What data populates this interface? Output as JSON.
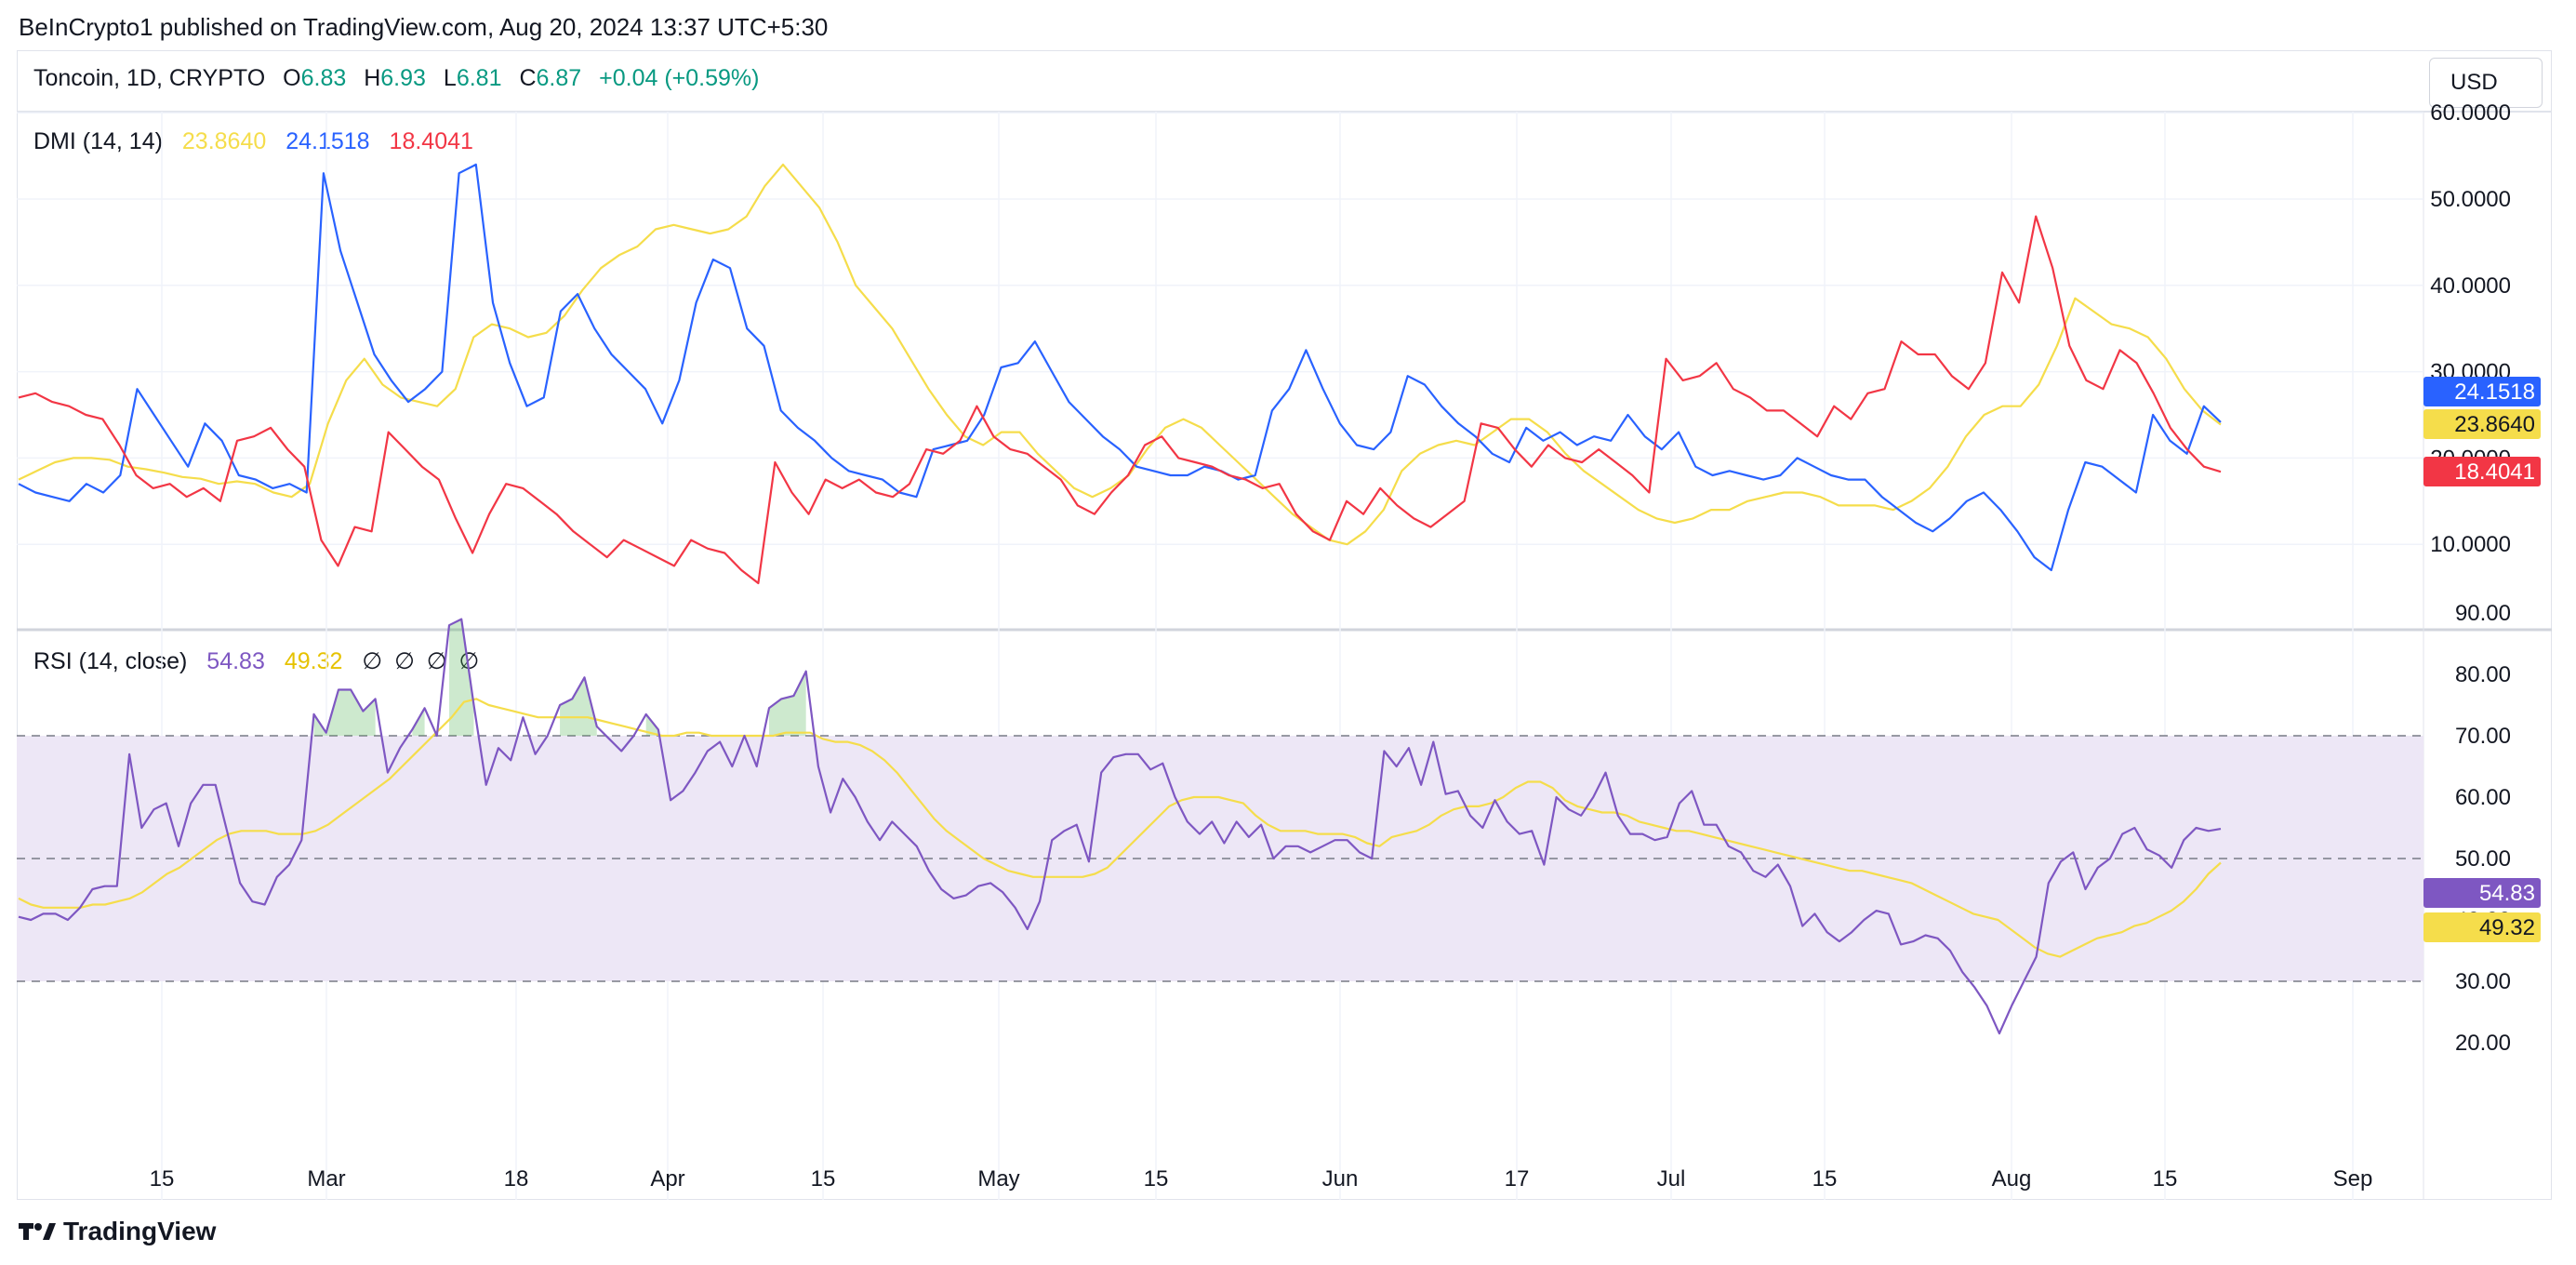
{
  "publisher_line": "BeInCrypto1 published on TradingView.com, Aug 20, 2024 13:37 UTC+5:30",
  "header": {
    "symbol": "Toncoin, 1D, CRYPTO",
    "o_label": "O",
    "o_value": "6.83",
    "h_label": "H",
    "h_value": "6.93",
    "l_label": "L",
    "l_value": "6.81",
    "c_label": "C",
    "c_value": "6.87",
    "change": "+0.04 (+0.59%)",
    "currency": "USD"
  },
  "footer": {
    "brand": "TradingView"
  },
  "colors": {
    "adx": "#f5dd4b",
    "plus_di": "#2962ff",
    "minus_di": "#f23645",
    "rsi": "#7e57c2",
    "rsi_ma": "#f5dd4b",
    "band": "#ede7f6"
  },
  "chart_data": [
    {
      "type": "line",
      "title": "DMI (14, 14)",
      "legend_values": [
        "23.8640",
        "24.1518",
        "18.4041"
      ],
      "y_ticks": [
        "10.0000",
        "20.0000",
        "30.0000",
        "40.0000",
        "50.0000",
        "60.0000"
      ],
      "ylim": [
        0,
        60
      ],
      "last_labels": [
        "24.1518",
        "23.8640",
        "18.4041"
      ],
      "series": [
        {
          "values": [
            17.5,
            18.5,
            19.5,
            20.0,
            20.0,
            19.8,
            19.0,
            18.7,
            18.3,
            17.8,
            17.6,
            17.0,
            17.3,
            17.0,
            16.0,
            15.5,
            17.0,
            24.0,
            29.0,
            31.5,
            28.5,
            27.0,
            26.5,
            26.0,
            28.0,
            34.0,
            35.5,
            35.0,
            34.0,
            34.5,
            36.5,
            39.5,
            42.0,
            43.5,
            44.5,
            46.5,
            47.0,
            46.5,
            46.0,
            46.5,
            48.0,
            51.5,
            54.0,
            51.5,
            49.0,
            45.0,
            40.0,
            37.5,
            35.0,
            31.5,
            28.0,
            25.0,
            22.5,
            21.5,
            23.0,
            23.0,
            20.5,
            18.5,
            16.5,
            15.5,
            16.5,
            18.0,
            21.0,
            23.5,
            24.5,
            23.5,
            21.5,
            19.5,
            17.5,
            15.5,
            13.5,
            12.0,
            10.5,
            10.0,
            11.5,
            14.0,
            18.5,
            20.5,
            21.5,
            22.0,
            21.5,
            23.0,
            24.5,
            24.5,
            23.0,
            20.5,
            18.5,
            17.0,
            15.5,
            14.0,
            13.0,
            12.5,
            13.0,
            14.0,
            14.0,
            15.0,
            15.5,
            16.0,
            16.0,
            15.5,
            14.5,
            14.5,
            14.5,
            14.0,
            15.0,
            16.5,
            19.0,
            22.5,
            25.0,
            26.0,
            26.0,
            28.5,
            33.0,
            38.5,
            37.0,
            35.5,
            35.0,
            34.0,
            31.5,
            28.0,
            25.5,
            23.864
          ]
        },
        {
          "values": [
            17.0,
            16.0,
            15.5,
            15.0,
            17.0,
            16.0,
            18.0,
            28.0,
            25.0,
            22.0,
            19.0,
            24.0,
            22.0,
            18.0,
            17.5,
            16.5,
            17.0,
            16.0,
            53.0,
            44.0,
            38.0,
            32.0,
            29.0,
            26.5,
            28.0,
            30.0,
            53.0,
            54.0,
            38.0,
            31.0,
            26.0,
            27.0,
            37.0,
            39.0,
            35.0,
            32.0,
            30.0,
            28.0,
            24.0,
            29.0,
            38.0,
            43.0,
            42.0,
            35.0,
            33.0,
            25.5,
            23.5,
            22.0,
            20.0,
            18.5,
            18.0,
            17.5,
            16.0,
            15.5,
            21.0,
            21.5,
            22.0,
            25.0,
            30.5,
            31.0,
            33.5,
            30.0,
            26.5,
            24.5,
            22.5,
            21.0,
            19.0,
            18.5,
            18.0,
            18.0,
            19.0,
            18.5,
            17.5,
            18.0,
            25.5,
            28.0,
            32.5,
            28.0,
            24.0,
            21.5,
            21.0,
            23.0,
            29.5,
            28.5,
            26.0,
            24.0,
            22.5,
            20.5,
            19.5,
            23.5,
            22.0,
            23.0,
            21.5,
            22.5,
            22.0,
            25.0,
            22.5,
            21.0,
            23.0,
            19.0,
            18.0,
            18.5,
            18.0,
            17.5,
            18.0,
            20.0,
            19.0,
            18.0,
            17.5,
            17.5,
            15.5,
            14.0,
            12.5,
            11.5,
            13.0,
            15.0,
            16.0,
            14.0,
            11.5,
            8.5,
            7.0,
            14.0,
            19.5,
            19.0,
            17.5,
            16.0,
            25.0,
            22.0,
            20.5,
            26.0,
            24.1518
          ]
        },
        {
          "values": [
            27.0,
            27.5,
            26.5,
            26.0,
            25.0,
            24.5,
            21.5,
            18.0,
            16.5,
            17.0,
            15.5,
            16.5,
            15.0,
            22.0,
            22.5,
            23.5,
            21.0,
            19.0,
            10.5,
            7.5,
            12.0,
            11.5,
            23.0,
            21.0,
            19.0,
            17.5,
            13.0,
            9.0,
            13.5,
            17.0,
            16.5,
            15.0,
            13.5,
            11.5,
            10.0,
            8.5,
            10.5,
            9.5,
            8.5,
            7.5,
            10.5,
            9.5,
            9.0,
            7.0,
            5.5,
            19.5,
            16.0,
            13.5,
            17.5,
            16.5,
            17.5,
            16.0,
            15.5,
            17.0,
            21.0,
            20.5,
            22.0,
            26.0,
            22.5,
            21.0,
            20.5,
            19.0,
            17.5,
            14.5,
            13.5,
            16.0,
            18.0,
            21.5,
            22.5,
            20.0,
            19.5,
            19.0,
            18.0,
            17.5,
            16.5,
            17.0,
            13.5,
            11.5,
            10.5,
            15.0,
            13.5,
            16.5,
            14.5,
            13.0,
            12.0,
            13.5,
            15.0,
            24.0,
            23.5,
            21.0,
            19.0,
            21.5,
            20.0,
            19.5,
            21.0,
            19.5,
            18.0,
            16.0,
            31.5,
            29.0,
            29.5,
            31.0,
            28.0,
            27.0,
            25.5,
            25.5,
            24.0,
            22.5,
            26.0,
            24.5,
            27.5,
            28.0,
            33.5,
            32.0,
            32.0,
            29.5,
            28.0,
            31.0,
            41.5,
            38.0,
            48.0,
            42.0,
            33.0,
            29.0,
            28.0,
            32.5,
            31.0,
            27.5,
            23.5,
            21.0,
            19.0,
            18.4041
          ]
        }
      ]
    },
    {
      "type": "line",
      "title": "RSI (14, close)",
      "legend_values": [
        "54.83",
        "49.32"
      ],
      "legend_extra": [
        "∅",
        "∅",
        "∅",
        "∅"
      ],
      "y_ticks": [
        "20.00",
        "30.00",
        "40.00",
        "50.00",
        "60.00",
        "70.00",
        "80.00",
        "90.00"
      ],
      "ylim": [
        15,
        93
      ],
      "bands": [
        30,
        50,
        70
      ],
      "last_labels": [
        "54.83",
        "49.32"
      ],
      "x_ticks": [
        "15",
        "Mar",
        "18",
        "Apr",
        "15",
        "May",
        "15",
        "Jun",
        "17",
        "Jul",
        "15",
        "Aug",
        "15",
        "Sep"
      ],
      "series": [
        {
          "values": [
            40.5,
            40.0,
            41.0,
            41.0,
            40.0,
            42.0,
            45.0,
            45.5,
            45.5,
            67.0,
            55.0,
            58.0,
            59.0,
            52.0,
            59.0,
            62.0,
            62.0,
            54.0,
            46.0,
            43.0,
            42.5,
            47.0,
            49.0,
            53.0,
            73.5,
            70.5,
            77.5,
            77.5,
            74.0,
            76.0,
            64.0,
            68.0,
            71.0,
            74.5,
            70.0,
            88.0,
            89.0,
            75.0,
            62.0,
            68.0,
            66.0,
            73.0,
            67.0,
            70.0,
            75.0,
            76.0,
            79.5,
            71.5,
            69.5,
            67.5,
            70.0,
            73.5,
            71.0,
            59.5,
            61.0,
            64.0,
            67.5,
            69.0,
            65.0,
            70.0,
            65.0,
            74.5,
            76.0,
            76.5,
            80.5,
            65.0,
            57.5,
            63.0,
            60.0,
            56.0,
            53.0,
            56.0,
            54.0,
            52.0,
            48.0,
            45.0,
            43.5,
            44.0,
            45.5,
            46.0,
            44.5,
            42.0,
            38.5,
            43.0,
            53.0,
            54.5,
            55.5,
            49.5,
            64.0,
            66.5,
            67.0,
            67.0,
            64.5,
            65.5,
            60.0,
            56.0,
            54.0,
            56.0,
            52.5,
            56.0,
            53.5,
            55.5,
            50.0,
            52.0,
            52.0,
            51.0,
            52.0,
            53.0,
            53.0,
            51.0,
            50.0,
            67.5,
            65.0,
            68.0,
            62.0,
            69.0,
            60.5,
            61.0,
            57.0,
            55.0,
            59.5,
            56.0,
            54.0,
            54.5,
            49.0,
            60.0,
            58.0,
            57.0,
            60.0,
            64.0,
            57.0,
            54.0,
            54.0,
            53.0,
            53.5,
            59.0,
            61.0,
            55.5,
            55.5,
            52.0,
            51.0,
            48.0,
            47.0,
            49.0,
            45.5,
            39.0,
            41.0,
            38.0,
            36.5,
            38.0,
            40.0,
            41.5,
            41.0,
            36.0,
            36.5,
            37.5,
            37.0,
            35.0,
            31.5,
            29.0,
            26.0,
            21.5,
            26.0,
            30.0,
            34.0,
            46.0,
            49.5,
            51.0,
            45.0,
            48.5,
            50.0,
            54.0,
            55.0,
            51.5,
            50.5,
            48.5,
            53.0,
            55.0,
            54.5,
            54.83
          ]
        },
        {
          "values": [
            43.5,
            42.5,
            42.0,
            42.0,
            42.0,
            42.0,
            42.5,
            42.5,
            43.0,
            43.5,
            44.5,
            46.0,
            47.5,
            48.5,
            50.0,
            51.5,
            53.0,
            54.0,
            54.5,
            54.5,
            54.5,
            54.0,
            54.0,
            54.0,
            54.5,
            55.5,
            57.0,
            58.5,
            60.0,
            61.5,
            63.0,
            65.0,
            67.0,
            69.0,
            71.0,
            73.0,
            75.5,
            76.0,
            75.0,
            74.5,
            74.0,
            73.5,
            73.0,
            73.0,
            73.0,
            73.0,
            73.0,
            72.5,
            72.0,
            71.5,
            71.0,
            70.5,
            70.0,
            70.0,
            70.5,
            70.5,
            70.0,
            70.0,
            70.0,
            70.0,
            70.0,
            70.0,
            70.5,
            70.5,
            70.5,
            69.5,
            69.0,
            69.0,
            68.5,
            67.5,
            66.0,
            64.0,
            61.5,
            59.0,
            56.5,
            54.5,
            53.0,
            51.5,
            50.0,
            49.0,
            48.0,
            47.5,
            47.0,
            47.0,
            47.0,
            47.0,
            47.0,
            47.5,
            48.5,
            50.5,
            52.5,
            54.5,
            56.5,
            58.5,
            59.5,
            60.0,
            60.0,
            60.0,
            59.5,
            59.0,
            57.0,
            55.5,
            54.5,
            54.5,
            54.5,
            54.0,
            54.0,
            54.0,
            53.5,
            52.5,
            52.0,
            53.5,
            54.0,
            54.5,
            55.5,
            57.0,
            58.0,
            58.5,
            58.5,
            59.0,
            60.0,
            61.5,
            62.5,
            62.5,
            61.5,
            59.5,
            58.5,
            58.0,
            57.5,
            57.5,
            57.0,
            56.0,
            55.5,
            55.0,
            54.5,
            54.5,
            54.0,
            53.5,
            53.0,
            52.5,
            52.0,
            51.5,
            51.0,
            50.5,
            50.0,
            49.5,
            49.0,
            48.5,
            48.0,
            48.0,
            47.5,
            47.0,
            46.5,
            46.0,
            45.0,
            44.0,
            43.0,
            42.0,
            41.0,
            40.5,
            40.0,
            38.5,
            37.0,
            35.5,
            34.5,
            34.0,
            35.0,
            36.0,
            37.0,
            37.5,
            38.0,
            39.0,
            39.5,
            40.5,
            41.5,
            43.0,
            45.0,
            47.5,
            49.32
          ]
        }
      ]
    }
  ]
}
